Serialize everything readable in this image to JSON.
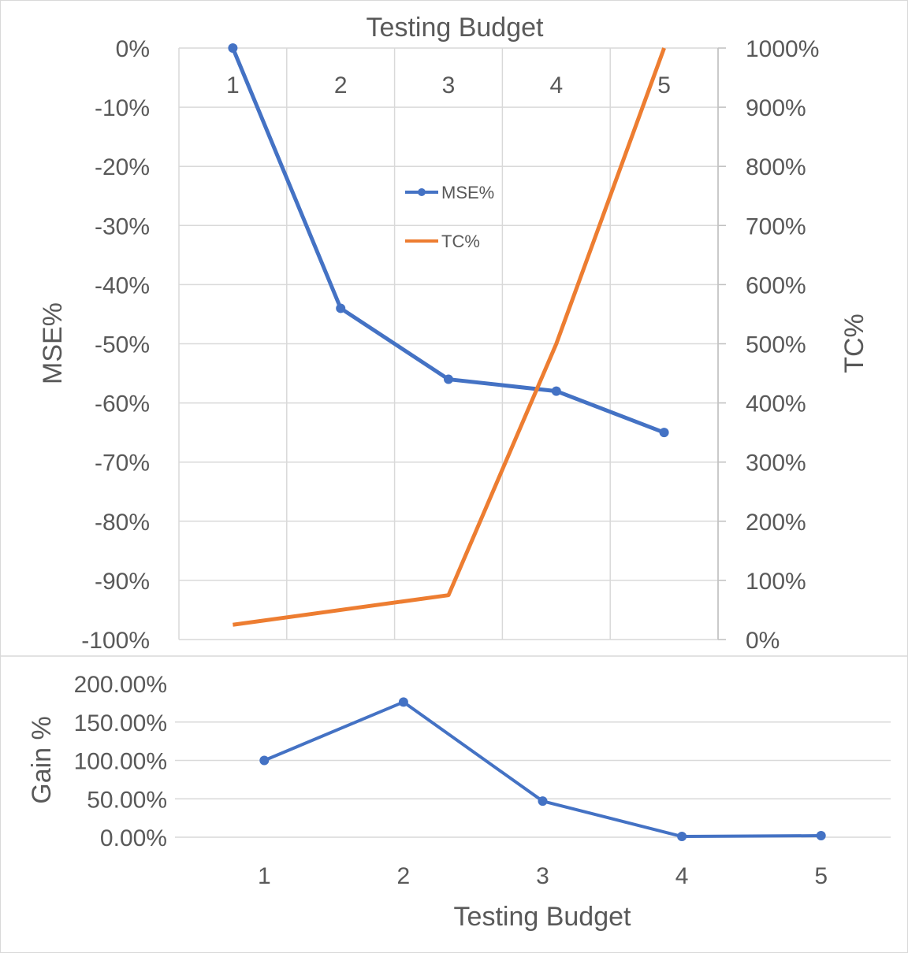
{
  "chart_data": [
    {
      "type": "line",
      "title": "",
      "x_axis_title": "Testing Budget",
      "categories": [
        "1",
        "2",
        "3",
        "4",
        "5"
      ],
      "left_axis": {
        "label": "MSE%",
        "range": [
          -100,
          0
        ],
        "ticks": [
          "0%",
          "-10%",
          "-20%",
          "-30%",
          "-40%",
          "-50%",
          "-60%",
          "-70%",
          "-80%",
          "-90%",
          "-100%"
        ]
      },
      "right_axis": {
        "label": "TC%",
        "range": [
          0,
          1000
        ],
        "ticks": [
          "1000%",
          "900%",
          "800%",
          "700%",
          "600%",
          "500%",
          "400%",
          "300%",
          "200%",
          "100%",
          "0%"
        ]
      },
      "series": [
        {
          "name": "MSE%",
          "axis": "left",
          "color": "#4472C4",
          "markers": true,
          "values": [
            0,
            -44,
            -56,
            -58,
            -65
          ]
        },
        {
          "name": "TC%",
          "axis": "right",
          "color": "#ED7D31",
          "markers": false,
          "values": [
            25,
            50,
            75,
            500,
            1000
          ]
        }
      ],
      "legend": "center-top",
      "grid": true
    },
    {
      "type": "line",
      "title": "",
      "xlabel": "Testing Budget",
      "ylabel": "Gain %",
      "categories": [
        "1",
        "2",
        "3",
        "4",
        "5"
      ],
      "ylim": [
        0,
        200
      ],
      "yticks": [
        "200.00%",
        "150.00%",
        "100.00%",
        "50.00%",
        "0.00%"
      ],
      "series": [
        {
          "color": "#4472C4",
          "markers": true,
          "values": [
            100,
            176,
            47,
            1,
            2
          ]
        }
      ],
      "grid": true
    }
  ]
}
